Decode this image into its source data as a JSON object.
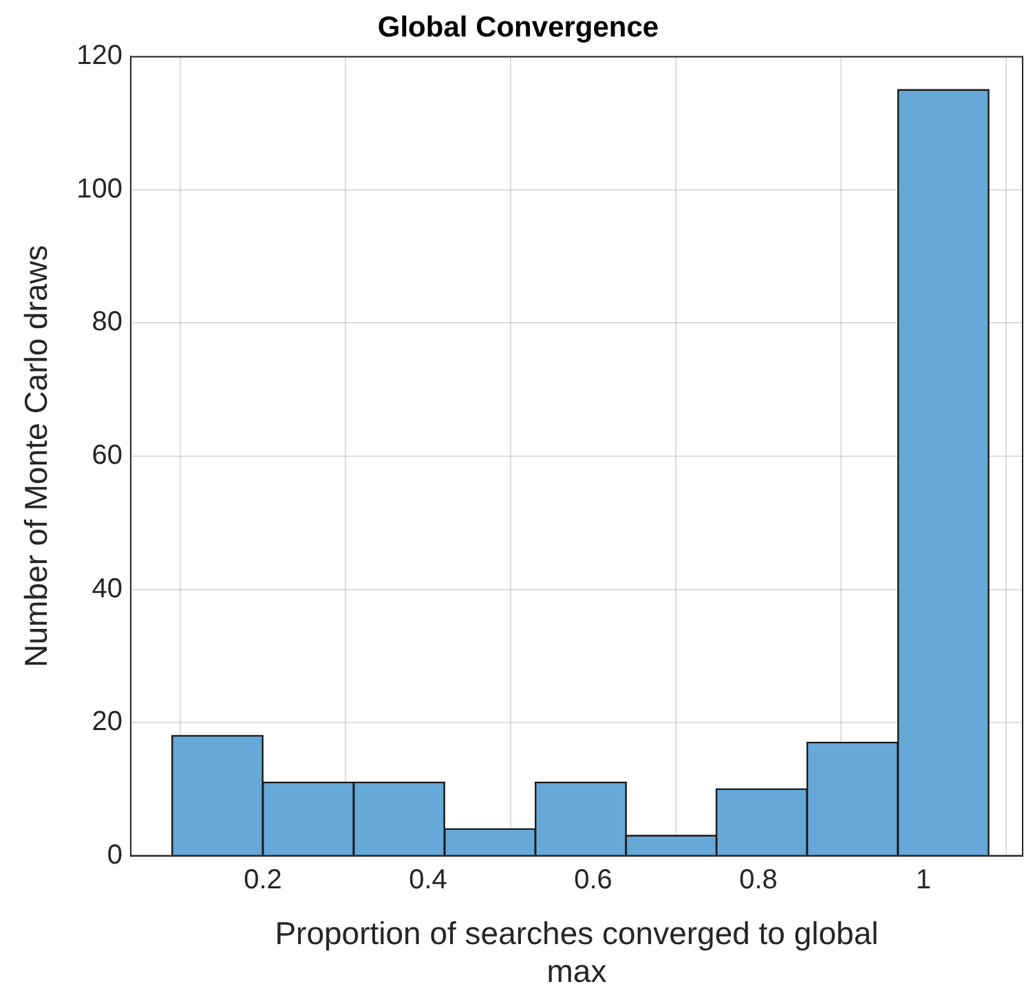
{
  "chart_data": {
    "type": "histogram",
    "title": "Global Convergence",
    "xlabel": "Proportion of searches converged to global max",
    "ylabel": "Number of Monte Carlo draws",
    "bins": [
      0.09,
      0.2,
      0.31,
      0.42,
      0.53,
      0.64,
      0.749,
      0.859,
      0.969,
      1.079
    ],
    "values": [
      18,
      11,
      11,
      4,
      11,
      3,
      10,
      17,
      115
    ],
    "color": "#66a8d7",
    "xlim": [
      0.04,
      1.12
    ],
    "xticks": [
      0.2,
      0.4,
      0.6,
      0.8,
      1
    ],
    "ylim": [
      0,
      120
    ],
    "yticks": [
      0,
      20,
      40,
      60,
      80,
      100,
      120
    ],
    "grid": true,
    "legend": false
  }
}
